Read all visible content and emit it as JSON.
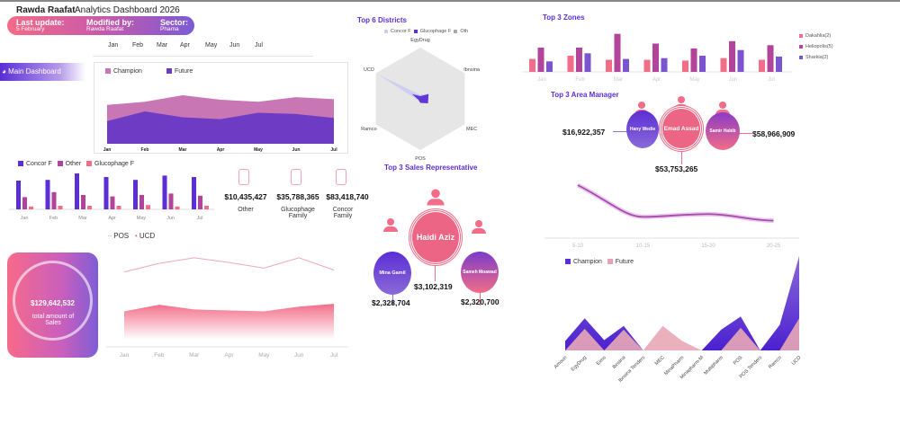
{
  "header": {
    "author": "Rawda Raafat",
    "title": "Analytics Dashboard 2026",
    "last_update_label": "Last update:",
    "last_update_value": "5 February",
    "modified_by_label": "Modified by:",
    "modified_by_value": "Rawda Raafat",
    "sector_label": "Sector:",
    "sector_value": "Phama"
  },
  "month_filter": [
    "Jan",
    "Feb",
    "Mar",
    "Apr",
    "May",
    "Jun",
    "Jul"
  ],
  "nav": {
    "main_dashboard": "Main Dashboard"
  },
  "colors": {
    "purple": "#5b2ed6",
    "pink": "#f26d88",
    "magenta": "#b2449b",
    "champion_area": "#c876b4",
    "future_area": "#6e3cc4"
  },
  "families": [
    {
      "value": "$10,435,427",
      "label": "Other"
    },
    {
      "value": "$35,788,365",
      "label": "Glucophage Family"
    },
    {
      "value": "$83,418,740",
      "label": "Concor Family"
    }
  ],
  "total_sales": {
    "value": "$129,642,532",
    "label": "total amount of Sales"
  },
  "districts": {
    "title": "Top 6 Districts"
  },
  "zones": {
    "title": "Top 3 Zones"
  },
  "area_managers": {
    "title": "Top 3 Area Manager",
    "people": [
      {
        "name": "Hany Wedie",
        "value": "$16,922,357"
      },
      {
        "name": "Emad Assad",
        "value": "$53,753,265"
      },
      {
        "name": "Samir Habib",
        "value": "$58,966,909"
      }
    ]
  },
  "sales_reps": {
    "title": "Top 3 Sales Representative",
    "people": [
      {
        "name": "Mina Gamil",
        "value": "$2,328,704"
      },
      {
        "name": "Haidi Aziz",
        "value": "$3,102,319"
      },
      {
        "name": "Sameh Moawad",
        "value": "$2,320,700"
      }
    ]
  },
  "chart_data": [
    {
      "id": "champion_future_monthly",
      "type": "area",
      "stacked": true,
      "categories": [
        "Jan",
        "Feb",
        "Mar",
        "Apr",
        "May",
        "Jun",
        "Jul"
      ],
      "series": [
        {
          "name": "Champion",
          "values": [
            25,
            15,
            34,
            30,
            17,
            26,
            29
          ]
        },
        {
          "name": "Future",
          "values": [
            35,
            50,
            41,
            38,
            48,
            46,
            40
          ]
        }
      ],
      "legend": "top-left"
    },
    {
      "id": "product_monthly",
      "type": "bar",
      "categories": [
        "Jan",
        "Feb",
        "Mar",
        "Apr",
        "May",
        "Jun",
        "Jul"
      ],
      "series": [
        {
          "name": "Concor F",
          "values": [
            40,
            41,
            50,
            45,
            41,
            47,
            45
          ]
        },
        {
          "name": "Other",
          "values": [
            17,
            24,
            20,
            18,
            20,
            22,
            19
          ]
        },
        {
          "name": "Glucophage F",
          "values": [
            4,
            5,
            5,
            5,
            6,
            4,
            5
          ]
        }
      ],
      "legend": "top-left"
    },
    {
      "id": "pos_ucd",
      "type": "line",
      "categories": [
        "Jan",
        "Feb",
        "Mar",
        "Apr",
        "May",
        "Jun",
        "Jul"
      ],
      "series": [
        {
          "name": "POS",
          "values": [
            48,
            57,
            63,
            58,
            52,
            63,
            50
          ]
        },
        {
          "name": "UCD",
          "values": [
            30,
            37,
            32,
            31,
            30,
            35,
            38
          ]
        }
      ],
      "legend": "top-left"
    },
    {
      "id": "districts_radar",
      "type": "radar",
      "categories": [
        "EgyDrug",
        "Ibnsina",
        "MEC",
        "POS",
        "Ramco",
        "UCD"
      ],
      "series": [
        {
          "name": "Concor F",
          "values": [
            6,
            14,
            10,
            6,
            4,
            70
          ]
        },
        {
          "name": "Glucophage F",
          "values": [
            4,
            14,
            13,
            6,
            3,
            14
          ]
        },
        {
          "name": "Oth",
          "values": [
            0,
            0,
            0,
            0,
            0,
            0
          ]
        }
      ],
      "legend": "top"
    },
    {
      "id": "zones_monthly",
      "type": "bar",
      "categories": [
        "Jan",
        "Feb",
        "Mar",
        "Apr",
        "May",
        "Jun",
        "Jul"
      ],
      "series": [
        {
          "name": "Dakahlia(2)",
          "values": [
            16,
            20,
            15,
            15,
            14,
            17,
            15
          ]
        },
        {
          "name": "Heliopolis(5)",
          "values": [
            30,
            30,
            47,
            35,
            29,
            38,
            33
          ]
        },
        {
          "name": "Sharkia(2)",
          "values": [
            13,
            23,
            16,
            17,
            20,
            27,
            19
          ]
        }
      ],
      "legend": "right"
    },
    {
      "id": "age_trend",
      "type": "line",
      "categories": [
        "5-10",
        "10-15",
        "15-20",
        "20-25"
      ],
      "values": [
        100,
        32,
        38,
        24
      ]
    },
    {
      "id": "champion_future_district",
      "type": "area",
      "categories": [
        "Amoun",
        "EgyDrug",
        "Eims",
        "Ibnsina",
        "Ibnsina Tenders",
        "MEC",
        "MinaPharm",
        "Minapharm-M",
        "Multipharm",
        "POS",
        "POS Tenders",
        "Ramco",
        "UCD"
      ],
      "series": [
        {
          "name": "Champion",
          "values": [
            10,
            34,
            11,
            26,
            0,
            0,
            0,
            0,
            22,
            36,
            0,
            27,
            100
          ]
        },
        {
          "name": "Future",
          "values": [
            0,
            23,
            0,
            22,
            0,
            26,
            10,
            0,
            0,
            24,
            0,
            0,
            34
          ]
        }
      ],
      "legend": "top-left"
    }
  ]
}
